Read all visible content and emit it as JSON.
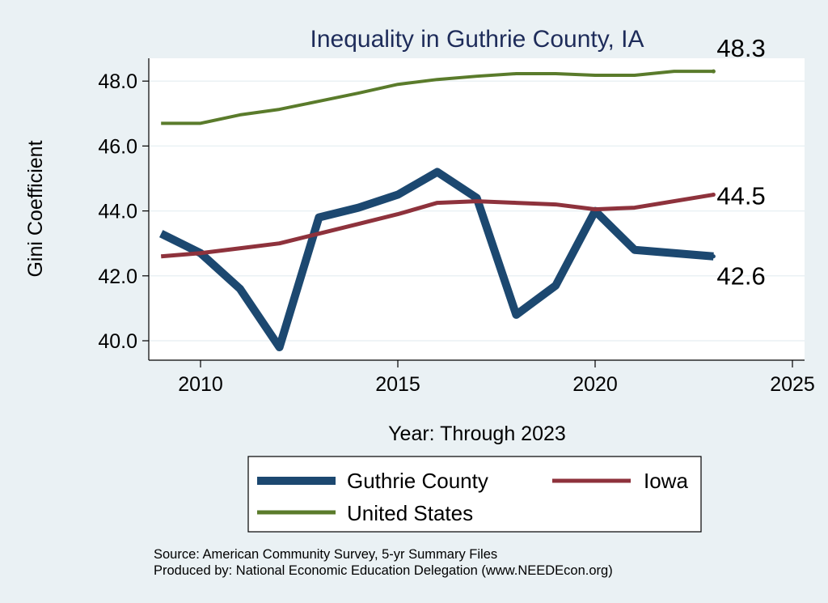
{
  "chart_data": {
    "type": "line",
    "title": "Inequality in Guthrie County, IA",
    "xlabel": "Year: Through 2023",
    "ylabel": "Gini Coefficient",
    "xlim": [
      2008.8,
      2025.6
    ],
    "ylim": [
      39.5,
      48.7
    ],
    "xticks": [
      "2010",
      "2015",
      "2020",
      "2025"
    ],
    "yticks": [
      "40.0",
      "42.0",
      "44.0",
      "46.0",
      "48.0"
    ],
    "grid": true,
    "legend_placement": "bottom",
    "x": [
      2009,
      2010,
      2011,
      2012,
      2013,
      2014,
      2015,
      2016,
      2017,
      2018,
      2019,
      2020,
      2021,
      2022,
      2023
    ],
    "series": [
      {
        "name": "Guthrie County",
        "color": "#1c4870",
        "values": [
          43.3,
          42.7,
          41.6,
          39.8,
          43.8,
          44.1,
          44.5,
          45.2,
          44.4,
          40.8,
          41.7,
          44.0,
          42.8,
          42.7,
          42.6
        ],
        "end_label": "42.6"
      },
      {
        "name": "Iowa",
        "color": "#8e323c",
        "values": [
          42.6,
          42.7,
          42.85,
          43.0,
          43.3,
          43.6,
          43.9,
          44.25,
          44.3,
          44.25,
          44.2,
          44.05,
          44.1,
          44.3,
          44.5
        ],
        "end_label": "44.5"
      },
      {
        "name": "United States",
        "color": "#5a7b2b",
        "values": [
          46.7,
          46.7,
          46.96,
          47.13,
          47.38,
          47.63,
          47.9,
          48.05,
          48.15,
          48.23,
          48.23,
          48.18,
          48.18,
          48.3,
          48.3
        ],
        "end_label": "48.3"
      }
    ]
  },
  "source_lines": [
    "Source: American Community Survey, 5-yr Summary Files",
    "Produced by: National Economic Education Delegation (www.NEEDEcon.org)"
  ]
}
